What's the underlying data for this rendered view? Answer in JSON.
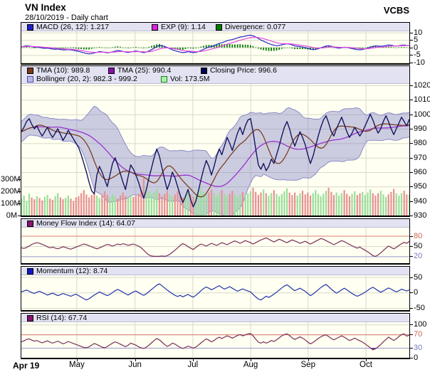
{
  "header": {
    "title": "VN Index",
    "subtitle": "28/10/2019 - Daily chart",
    "brand": "VCBS"
  },
  "x_axis": {
    "start_label": "Apr 19",
    "months": [
      "May",
      "Jun",
      "Jul",
      "Aug",
      "Sep",
      "Oct"
    ]
  },
  "colors": {
    "plot_bg": "#fffff2",
    "legend_bg": "#e2e2f2",
    "grid": "#d9d9c8",
    "border": "#000000",
    "macd_line": "#2828c8",
    "exp_line": "#e448e4",
    "divergence_bar": "#007a00",
    "close_line": "#151560",
    "tma10_line": "#7b3f1e",
    "tma25_line": "#9933cc",
    "bollinger_fill": "rgba(122,122,196,0.38)",
    "bollinger_edge": "#8a8ac8",
    "vol_up": "#9ade9a",
    "vol_down": "#e89191",
    "mfi_line": "#7a2f58",
    "momentum_line": "#2233aa",
    "rsi_line": "#7a2f58",
    "overbought_line": "#d88070",
    "oversold_line": "#9898cc",
    "rsi_over_fill": "#cc3344",
    "rsi_under_fill": "#5544bb"
  },
  "chart_data": [
    {
      "id": "macd",
      "type": "line",
      "ylim": [
        -10.5,
        10.8
      ],
      "legend_rows": [
        [
          {
            "label": "MACD (26, 12): 1.217",
            "color": "#2020c8"
          },
          {
            "label": "EXP (9): 1.14",
            "color": "#e020e0"
          },
          {
            "label": "Divergence: 0.077",
            "color": "#007a00"
          }
        ]
      ],
      "yticks": [
        {
          "v": 10,
          "label": "10"
        },
        {
          "v": 5,
          "label": "5"
        },
        {
          "v": 0,
          "label": "0"
        },
        {
          "v": -5,
          "label": "-5"
        },
        {
          "v": -10,
          "label": "-10"
        }
      ],
      "note": "exp = EMA9(macd); divergence histogram = macd - exp",
      "series": {
        "macd": [
          0.5,
          0.8,
          1.2,
          1.0,
          0.6,
          0.2,
          0.4,
          0.1,
          -0.3,
          -0.5,
          -0.4,
          -0.7,
          -1.0,
          -1.2,
          -1.0,
          -1.3,
          -1.6,
          -1.5,
          -1.3,
          -1.6,
          -1.9,
          -2.2,
          -2.6,
          -3.0,
          -3.5,
          -3.9,
          -4.2,
          -4.0,
          -3.6,
          -3.1,
          -2.7,
          -2.9,
          -3.2,
          -3.5,
          -3.3,
          -2.9,
          -2.4,
          -2.0,
          -2.2,
          -2.6,
          -3.0,
          -3.3,
          -3.0,
          -2.6,
          -2.3,
          -2.6,
          -3.0,
          -3.4,
          -3.0,
          -2.3,
          -1.4,
          -0.4,
          0.6,
          1.4,
          1.2,
          0.7,
          0.0,
          -0.8,
          -1.5,
          -2.1,
          -2.6,
          -3.0,
          -3.4,
          -3.2,
          -2.8,
          -3.1,
          -3.4,
          -3.2,
          -2.7,
          -2.0,
          -1.2,
          -0.3,
          0.3,
          0.6,
          1.2,
          2.0,
          2.8,
          3.2,
          3.8,
          4.5,
          5.0,
          5.3,
          5.8,
          6.4,
          7.0,
          7.2,
          7.6,
          8.0,
          8.2,
          7.8,
          7.0,
          6.0,
          5.0,
          4.2,
          3.4,
          2.6,
          2.0,
          1.5,
          1.2,
          1.4,
          1.8,
          2.2,
          2.5,
          2.2,
          1.7,
          1.1,
          0.8,
          0.6,
          0.3,
          0.0,
          -0.5,
          -1.1,
          -1.4,
          -1.2,
          -0.8,
          -0.2,
          0.4,
          1.0,
          1.2,
          0.9,
          0.4,
          -0.1,
          -0.4,
          -0.2,
          0.2,
          0.1,
          -0.3,
          -0.7,
          -1.1,
          -1.4,
          -1.5,
          -1.3,
          -0.9,
          -0.4,
          0.2,
          0.8,
          1.1,
          1.0,
          0.8,
          1.0,
          1.4,
          1.7,
          1.5,
          1.2,
          1.0,
          1.2,
          1.5,
          1.6,
          1.4,
          1.217
        ]
      }
    },
    {
      "id": "price",
      "type": "line+bands+volume",
      "ylim": [
        930,
        1021
      ],
      "legend_rows": [
        [
          {
            "label": "TMA (10): 989.8",
            "color": "#7b3a1a"
          },
          {
            "label": "TMA (25): 990.4",
            "color": "#8a10a8"
          },
          {
            "label": "Closing Price: 996.6",
            "color": "#000050"
          }
        ],
        [
          {
            "label": "Bollinger (20, 2): 982.3 - 999.2",
            "color": "#b8b8ea",
            "border": "#5050a0"
          },
          {
            "label": "Vol: 173.5M",
            "color": "#aaf0aa",
            "border": "#208020"
          }
        ]
      ],
      "yticks": [
        {
          "v": 1020,
          "label": "1020"
        },
        {
          "v": 1010,
          "label": "1010"
        },
        {
          "v": 1000,
          "label": "1000"
        },
        {
          "v": 990,
          "label": "990"
        },
        {
          "v": 980,
          "label": "980"
        },
        {
          "v": 970,
          "label": "970"
        },
        {
          "v": 960,
          "label": "960"
        },
        {
          "v": 950,
          "label": "950"
        },
        {
          "v": 940,
          "label": "940"
        },
        {
          "v": 930,
          "label": "930"
        }
      ],
      "volume_ticks": [
        {
          "v": 300,
          "label": "300M"
        },
        {
          "v": 200,
          "label": "200M"
        },
        {
          "v": 100,
          "label": "100M"
        },
        {
          "v": 0,
          "label": "0M"
        }
      ],
      "note": "tma10/tma25 are triangular MAs of close; Bollinger(20,2) = SMA20 +/- 2 stdev; volume in millions",
      "series": {
        "close": [
          988,
          991,
          995,
          997,
          993,
          990,
          992,
          988,
          985,
          988,
          991,
          987,
          984,
          987,
          990,
          986,
          982,
          985,
          989,
          986,
          983,
          980,
          977,
          972,
          966,
          960,
          953,
          947,
          945,
          958,
          964,
          960,
          955,
          950,
          958,
          966,
          970,
          965,
          959,
          953,
          948,
          957,
          965,
          962,
          958,
          953,
          947,
          942,
          948,
          956,
          963,
          970,
          976,
          971,
          963,
          955,
          948,
          953,
          960,
          956,
          950,
          944,
          939,
          943,
          948,
          941,
          936,
          940,
          947,
          955,
          962,
          968,
          964,
          958,
          964,
          971,
          976,
          972,
          978,
          984,
          980,
          975,
          981,
          987,
          991,
          986,
          992,
          996,
          997,
          988,
          976,
          965,
          962,
          966,
          961,
          964,
          969,
          966,
          972,
          978,
          985,
          991,
          995,
          990,
          983,
          978,
          983,
          988,
          984,
          979,
          972,
          966,
          971,
          978,
          985,
          991,
          996,
          999,
          994,
          988,
          985,
          990,
          994,
          998,
          993,
          988,
          984,
          987,
          991,
          988,
          985,
          988,
          992,
          996,
          1000,
          996,
          991,
          987,
          990,
          995,
          999,
          995,
          990,
          986,
          990,
          994,
          998,
          995,
          992,
          996.6
        ],
        "volume": [
          140,
          165,
          120,
          180,
          150,
          135,
          160,
          145,
          125,
          155,
          170,
          140,
          130,
          160,
          185,
          150,
          135,
          145,
          165,
          140,
          120,
          150,
          160,
          185,
          210,
          175,
          150,
          170,
          195,
          165,
          145,
          175,
          200,
          170,
          155,
          180,
          160,
          140,
          165,
          190,
          160,
          145,
          170,
          155,
          165,
          180,
          210,
          310,
          240,
          200,
          175,
          195,
          220,
          185,
          160,
          180,
          205,
          175,
          155,
          175,
          200,
          170,
          150,
          170,
          190,
          175,
          155,
          180,
          205,
          230,
          195,
          170,
          190,
          215,
          185,
          160,
          185,
          210,
          180,
          160,
          180,
          205,
          175,
          155,
          175,
          195,
          170,
          185,
          200,
          230,
          195,
          170,
          190,
          215,
          185,
          165,
          185,
          210,
          180,
          160,
          180,
          200,
          225,
          190,
          170,
          190,
          165,
          185,
          205,
          175,
          190,
          165,
          185,
          210,
          180,
          160,
          180,
          205,
          230,
          195,
          170,
          190,
          165,
          185,
          210,
          180,
          160,
          180,
          200,
          170,
          185,
          195,
          170,
          190,
          215,
          185,
          165,
          185,
          205,
          175,
          155,
          175,
          195,
          220,
          185,
          165,
          185,
          205,
          175,
          174
        ]
      }
    },
    {
      "id": "mfi",
      "type": "line",
      "ylim": [
        0,
        104
      ],
      "legend_rows": [
        [
          {
            "label": "Money Flow Index (14): 64.07",
            "color": "#8a1570"
          }
        ]
      ],
      "yticks": [
        {
          "v": 80,
          "label": "80",
          "color": "#cc6652"
        },
        {
          "v": 50,
          "label": "50"
        },
        {
          "v": 20,
          "label": "20",
          "color": "#7878c0"
        }
      ],
      "hlines": [
        {
          "v": 80,
          "color": "#d88070"
        },
        {
          "v": 20,
          "color": "#9898cc"
        }
      ],
      "series": {
        "mfi": [
          45,
          43,
          46,
          50,
          55,
          58,
          60,
          58,
          55,
          52,
          48,
          45,
          47,
          44,
          42,
          45,
          48,
          46,
          43,
          41,
          44,
          47,
          50,
          53,
          56,
          54,
          51,
          48,
          45,
          42,
          45,
          48,
          52,
          55,
          53,
          50,
          53,
          56,
          54,
          57,
          55,
          52,
          54,
          56,
          53,
          50,
          45,
          38,
          30,
          24,
          21,
          20,
          20,
          20,
          21,
          20,
          22,
          26,
          32,
          38,
          45,
          52,
          57,
          54,
          48,
          44,
          40,
          46,
          52,
          56,
          53,
          50,
          54,
          58,
          55,
          52,
          56,
          60,
          57,
          54,
          58,
          62,
          65,
          62,
          58,
          62,
          66,
          63,
          60,
          56,
          60,
          64,
          68,
          71,
          74,
          70,
          66,
          62,
          66,
          70,
          67,
          63,
          60,
          64,
          68,
          65,
          62,
          58,
          61,
          64,
          60,
          56,
          60,
          64,
          68,
          72,
          70,
          66,
          62,
          58,
          54,
          58,
          62,
          66,
          63,
          59,
          55,
          51,
          47,
          44,
          47,
          42,
          38,
          33,
          28,
          22,
          20,
          24,
          30,
          37,
          44,
          50,
          46,
          42,
          46,
          52,
          57,
          61,
          58,
          64.07
        ]
      }
    },
    {
      "id": "momentum",
      "type": "line",
      "ylim": [
        -57,
        56
      ],
      "legend_rows": [
        [
          {
            "label": "Momentum (12): 8.74",
            "color": "#1515c8"
          }
        ]
      ],
      "yticks": [
        {
          "v": 50,
          "label": "50"
        },
        {
          "v": 0,
          "label": "0"
        },
        {
          "v": -50,
          "label": "-50"
        }
      ],
      "series": {
        "momentum": [
          2,
          5,
          8,
          4,
          0,
          -3,
          1,
          4,
          0,
          -4,
          -8,
          -5,
          -2,
          -6,
          -10,
          -7,
          -3,
          -6,
          -9,
          -12,
          -8,
          -5,
          -10,
          -15,
          -20,
          -24,
          -20,
          -14,
          -8,
          -3,
          2,
          -2,
          -6,
          -10,
          -6,
          0,
          6,
          10,
          6,
          1,
          -4,
          -8,
          -3,
          2,
          5,
          0,
          -5,
          -9,
          -4,
          3,
          10,
          17,
          24,
          28,
          22,
          15,
          8,
          2,
          -4,
          -9,
          -13,
          -9,
          -14,
          -10,
          -6,
          -11,
          -15,
          -9,
          -2,
          6,
          13,
          18,
          14,
          9,
          13,
          18,
          22,
          16,
          11,
          15,
          19,
          14,
          9,
          4,
          8,
          12,
          8,
          5,
          2,
          -6,
          -14,
          -21,
          -24,
          -18,
          -12,
          -16,
          -11,
          -5,
          1,
          8,
          15,
          21,
          25,
          19,
          12,
          6,
          10,
          14,
          9,
          4,
          -3,
          -10,
          -5,
          2,
          9,
          16,
          22,
          26,
          19,
          11,
          4,
          -2,
          3,
          9,
          14,
          9,
          3,
          -3,
          -8,
          -12,
          -8,
          -4,
          1,
          7,
          13,
          17,
          12,
          6,
          1,
          5,
          10,
          15,
          11,
          6,
          2,
          6,
          11,
          8,
          5,
          8.74
        ]
      }
    },
    {
      "id": "rsi",
      "type": "line",
      "ylim": [
        0,
        107
      ],
      "legend_rows": [
        [
          {
            "label": "RSI (14): 67.74",
            "color": "#8a1570"
          }
        ]
      ],
      "yticks": [
        {
          "v": 100,
          "label": "100"
        },
        {
          "v": 70,
          "label": "70",
          "color": "#cc6652"
        },
        {
          "v": 30,
          "label": "30",
          "color": "#7878c0"
        },
        {
          "v": 0,
          "label": "0"
        }
      ],
      "hlines": [
        {
          "v": 70,
          "color": "#d88070"
        },
        {
          "v": 30,
          "color": "#9898cc"
        }
      ],
      "bands": {
        "over": 70,
        "under": 30
      },
      "series": {
        "rsi": [
          48,
          51,
          55,
          57,
          53,
          50,
          52,
          48,
          45,
          48,
          51,
          47,
          44,
          47,
          50,
          46,
          42,
          45,
          49,
          46,
          43,
          40,
          37,
          34,
          31,
          30,
          33,
          38,
          43,
          40,
          36,
          32,
          30,
          34,
          39,
          44,
          48,
          45,
          41,
          37,
          33,
          38,
          44,
          41,
          38,
          33,
          30,
          28,
          32,
          38,
          45,
          52,
          58,
          54,
          47,
          40,
          34,
          38,
          44,
          41,
          36,
          31,
          28,
          31,
          35,
          32,
          29,
          32,
          38,
          45,
          51,
          57,
          53,
          48,
          52,
          58,
          62,
          58,
          62,
          66,
          63,
          59,
          63,
          67,
          70,
          66,
          69,
          72,
          73,
          66,
          56,
          47,
          44,
          48,
          44,
          47,
          52,
          49,
          54,
          60,
          66,
          70,
          72,
          67,
          60,
          55,
          59,
          63,
          59,
          54,
          47,
          42,
          46,
          52,
          58,
          63,
          67,
          69,
          64,
          58,
          54,
          58,
          62,
          66,
          62,
          57,
          52,
          55,
          59,
          55,
          51,
          47,
          42,
          36,
          30,
          24,
          27,
          33,
          40,
          48,
          55,
          62,
          57,
          52,
          57,
          64,
          70,
          72,
          65,
          67.74
        ]
      }
    }
  ]
}
